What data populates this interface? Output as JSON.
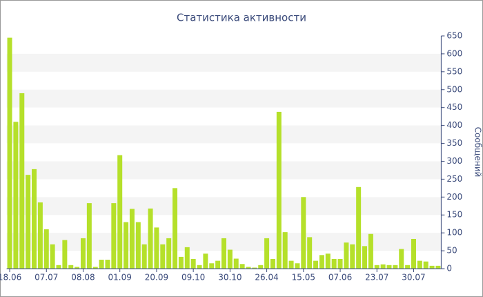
{
  "chart_data": {
    "type": "bar",
    "title": "Статистика активности",
    "y_label": "Сообщений",
    "categories": [
      "18.06",
      null,
      null,
      null,
      null,
      null,
      "07.07",
      null,
      null,
      null,
      null,
      null,
      "08.08",
      null,
      null,
      null,
      null,
      null,
      "01.09",
      null,
      null,
      null,
      null,
      null,
      "20.09",
      null,
      null,
      null,
      null,
      null,
      "09.10",
      null,
      null,
      null,
      null,
      null,
      "30.10",
      null,
      null,
      null,
      null,
      null,
      "26.04",
      null,
      null,
      null,
      null,
      null,
      "15.05",
      null,
      null,
      null,
      null,
      null,
      "07.06",
      null,
      null,
      null,
      null,
      null,
      "23.07",
      null,
      null,
      null,
      null,
      null,
      "30.07",
      null,
      null,
      null,
      null
    ],
    "values": [
      645,
      410,
      490,
      262,
      278,
      185,
      110,
      68,
      10,
      80,
      10,
      5,
      85,
      183,
      5,
      25,
      25,
      183,
      317,
      130,
      167,
      130,
      68,
      168,
      115,
      68,
      85,
      225,
      33,
      60,
      27,
      10,
      42,
      15,
      22,
      85,
      53,
      28,
      13,
      5,
      3,
      10,
      85,
      27,
      438,
      102,
      22,
      15,
      200,
      88,
      22,
      38,
      42,
      27,
      27,
      73,
      68,
      228,
      63,
      97,
      10,
      12,
      10,
      10,
      55,
      10,
      83,
      22,
      20,
      8,
      8
    ],
    "color": "#b5e02a",
    "ylim": [
      0,
      650
    ],
    "yticks": [
      0,
      50,
      100,
      150,
      200,
      250,
      300,
      350,
      400,
      450,
      500,
      550,
      600,
      650
    ],
    "grid": true
  }
}
